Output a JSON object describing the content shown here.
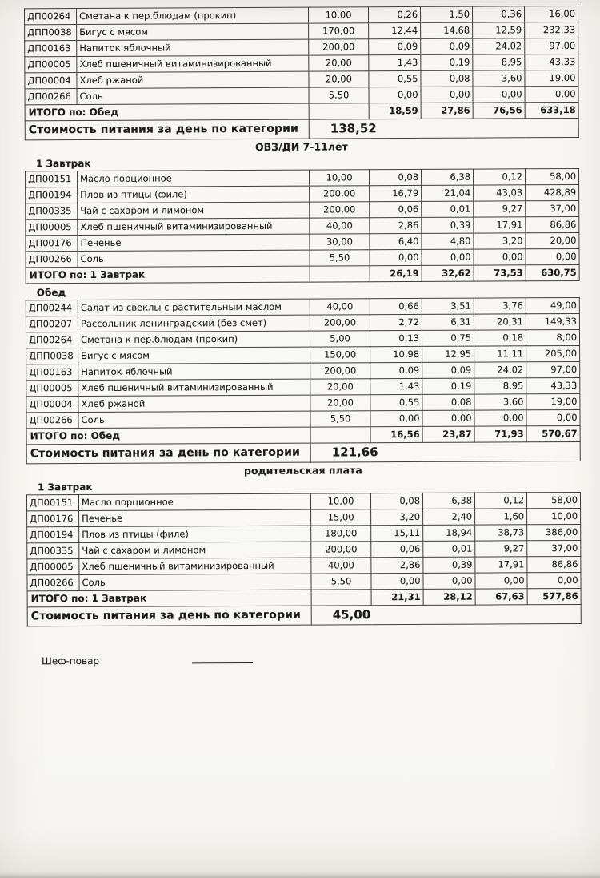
{
  "colors": {
    "paper": "#f7f6f2",
    "ink": "#1b1b1b",
    "border": "#3d3d3d"
  },
  "groups": [
    {
      "category_header": "",
      "blocks": [
        {
          "meal_label": "",
          "rows": [
            [
              "ДП00264",
              "Сметана к пер.блюдам (прокип)",
              "10,00",
              "0,26",
              "1,50",
              "0,36",
              "16,00"
            ],
            [
              "ДПП0038",
              "Бигус с мясом",
              "170,00",
              "12,44",
              "14,68",
              "12,59",
              "232,33"
            ],
            [
              "ДП00163",
              "Напиток яблочный",
              "200,00",
              "0,09",
              "0,09",
              "24,02",
              "97,00"
            ],
            [
              "ДП00005",
              "Хлеб пшеничный витаминизированный",
              "20,00",
              "1,43",
              "0,19",
              "8,95",
              "43,33"
            ],
            [
              "ДП00004",
              "Хлеб ржаной",
              "20,00",
              "0,55",
              "0,08",
              "3,60",
              "19,00"
            ],
            [
              "ДП00266",
              "Соль",
              "5,50",
              "0,00",
              "0,00",
              "0,00",
              "0,00"
            ]
          ],
          "total_label": "ИТОГО по: Обед",
          "total_values": [
            "18,59",
            "27,86",
            "76,56",
            "633,18"
          ],
          "day_cost_label": "Стоимость питания за день по категории",
          "day_cost_value": "138,52"
        }
      ]
    },
    {
      "category_header": "ОВЗ/ДИ 7-11лет",
      "blocks": [
        {
          "meal_label": "1 Завтрак",
          "rows": [
            [
              "ДП00151",
              "Масло порционное",
              "10,00",
              "0,08",
              "6,38",
              "0,12",
              "58,00"
            ],
            [
              "ДП00194",
              "Плов из птицы (филе)",
              "200,00",
              "16,79",
              "21,04",
              "43,03",
              "428,89"
            ],
            [
              "ДП00335",
              "Чай с сахаром и  лимоном",
              "200,00",
              "0,06",
              "0,01",
              "9,27",
              "37,00"
            ],
            [
              "ДП00005",
              "Хлеб пшеничный витаминизированный",
              "40,00",
              "2,86",
              "0,39",
              "17,91",
              "86,86"
            ],
            [
              "ДП00176",
              "Печенье",
              "30,00",
              "6,40",
              "4,80",
              "3,20",
              "20,00"
            ],
            [
              "ДП00266",
              "Соль",
              "5,50",
              "0,00",
              "0,00",
              "0,00",
              "0,00"
            ]
          ],
          "total_label": "ИТОГО по: 1 Завтрак",
          "total_values": [
            "26,19",
            "32,62",
            "73,53",
            "630,75"
          ],
          "day_cost_label": "",
          "day_cost_value": ""
        },
        {
          "meal_label": "Обед",
          "rows": [
            [
              "ДП00244",
              "Салат из свеклы с растительным маслом",
              "40,00",
              "0,66",
              "3,51",
              "3,76",
              "49,00"
            ],
            [
              "ДП00207",
              "Рассольник ленинградский (без смет)",
              "200,00",
              "2,72",
              "6,31",
              "20,31",
              "149,33"
            ],
            [
              "ДП00264",
              "Сметана к пер.блюдам (прокип)",
              "5,00",
              "0,13",
              "0,75",
              "0,18",
              "8,00"
            ],
            [
              "ДПП0038",
              "Бигус с мясом",
              "150,00",
              "10,98",
              "12,95",
              "11,11",
              "205,00"
            ],
            [
              "ДП00163",
              "Напиток яблочный",
              "200,00",
              "0,09",
              "0,09",
              "24,02",
              "97,00"
            ],
            [
              "ДП00005",
              "Хлеб пшеничный витаминизированный",
              "20,00",
              "1,43",
              "0,19",
              "8,95",
              "43,33"
            ],
            [
              "ДП00004",
              "Хлеб ржаной",
              "20,00",
              "0,55",
              "0,08",
              "3,60",
              "19,00"
            ],
            [
              "ДП00266",
              "Соль",
              "5,50",
              "0,00",
              "0,00",
              "0,00",
              "0,00"
            ]
          ],
          "total_label": "ИТОГО по: Обед",
          "total_values": [
            "16,56",
            "23,87",
            "71,93",
            "570,67"
          ],
          "day_cost_label": "Стоимость питания за день по категории",
          "day_cost_value": "121,66"
        }
      ]
    },
    {
      "category_header": "родительская плата",
      "blocks": [
        {
          "meal_label": "1 Завтрак",
          "rows": [
            [
              "ДП00151",
              "Масло порционное",
              "10,00",
              "0,08",
              "6,38",
              "0,12",
              "58,00"
            ],
            [
              "ДП00176",
              "Печенье",
              "15,00",
              "3,20",
              "2,40",
              "1,60",
              "10,00"
            ],
            [
              "ДП00194",
              "Плов из птицы (филе)",
              "180,00",
              "15,11",
              "18,94",
              "38,73",
              "386,00"
            ],
            [
              "ДП00335",
              "Чай с сахаром и  лимоном",
              "200,00",
              "0,06",
              "0,01",
              "9,27",
              "37,00"
            ],
            [
              "ДП00005",
              "Хлеб пшеничный витаминизированный",
              "40,00",
              "2,86",
              "0,39",
              "17,91",
              "86,86"
            ],
            [
              "ДП00266",
              "Соль",
              "5,50",
              "0,00",
              "0,00",
              "0,00",
              "0,00"
            ]
          ],
          "total_label": "ИТОГО по: 1 Завтрак",
          "total_values": [
            "21,31",
            "28,12",
            "67,63",
            "577,86"
          ],
          "day_cost_label": "Стоимость питания за день по категории",
          "day_cost_value": "45,00"
        }
      ]
    }
  ],
  "footer": {
    "chef_label": "Шеф-повар"
  }
}
